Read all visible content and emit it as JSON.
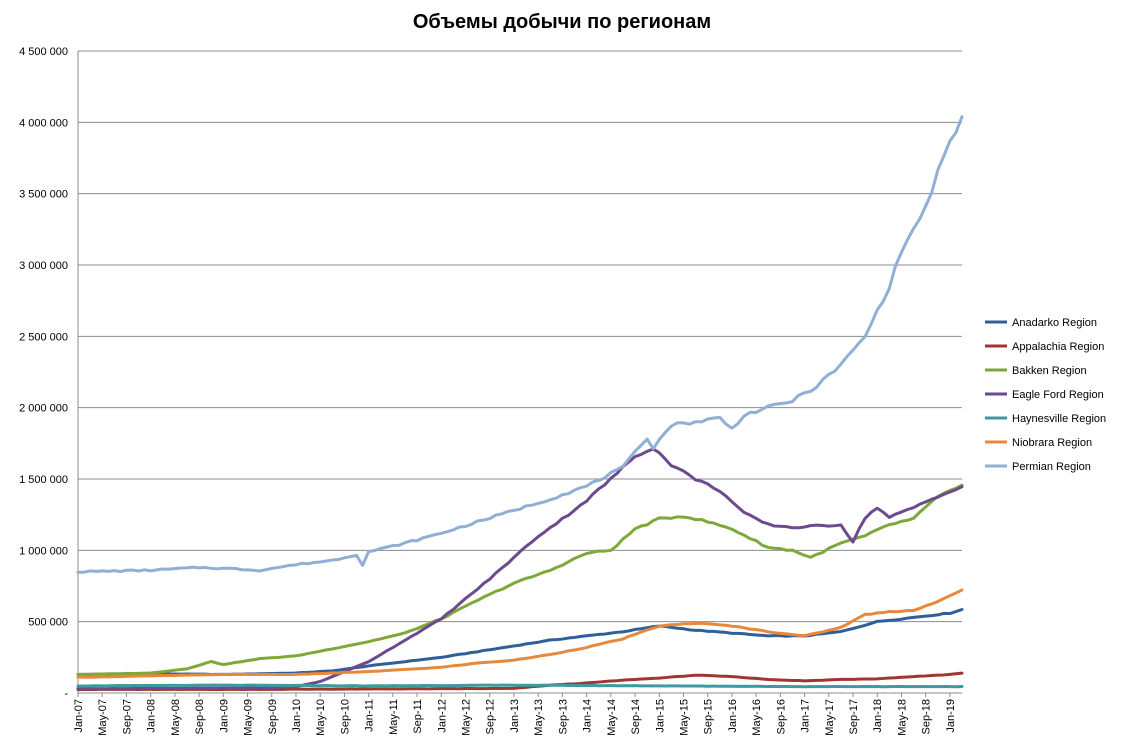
{
  "chart_data": {
    "type": "line",
    "title": "Объемы добычи по регионам",
    "xlabel": "",
    "ylabel": "",
    "ylim": [
      0,
      4500000
    ],
    "yticks": [
      0,
      500000,
      1000000,
      1500000,
      2000000,
      2500000,
      3000000,
      3500000,
      4000000,
      4500000
    ],
    "ytick_labels": [
      "-",
      "500 000",
      "1 000 000",
      "1 500 000",
      "2 000 000",
      "2 500 000",
      "3 000 000",
      "3 500 000",
      "4 000 000",
      "4 500 000"
    ],
    "xticks": [
      "Jan-07",
      "May-07",
      "Sep-07",
      "Jan-08",
      "May-08",
      "Sep-08",
      "Jan-09",
      "May-09",
      "Sep-09",
      "Jan-10",
      "May-10",
      "Sep-10",
      "Jan-11",
      "May-11",
      "Sep-11",
      "Jan-12",
      "May-12",
      "Sep-12",
      "Jan-13",
      "May-13",
      "Sep-13",
      "Jan-14",
      "May-14",
      "Sep-14",
      "Jan-15",
      "May-15",
      "Sep-15",
      "Jan-16",
      "May-16",
      "Sep-16",
      "Jan-17",
      "May-17",
      "Sep-17",
      "Jan-18",
      "May-18",
      "Sep-18",
      "Jan-19"
    ],
    "x_start": "Jan-07",
    "x_end": "Mar-19",
    "grid": true,
    "legend_position": "right",
    "series": [
      {
        "name": "Anadarko Region",
        "color": "#2f5f98",
        "anchors": [
          [
            0,
            130000
          ],
          [
            12,
            135000
          ],
          [
            24,
            130000
          ],
          [
            36,
            140000
          ],
          [
            42,
            155000
          ],
          [
            48,
            190000
          ],
          [
            54,
            220000
          ],
          [
            60,
            250000
          ],
          [
            66,
            290000
          ],
          [
            72,
            330000
          ],
          [
            78,
            370000
          ],
          [
            84,
            400000
          ],
          [
            90,
            430000
          ],
          [
            96,
            470000
          ],
          [
            102,
            440000
          ],
          [
            108,
            420000
          ],
          [
            114,
            400000
          ],
          [
            120,
            400000
          ],
          [
            126,
            430000
          ],
          [
            132,
            500000
          ],
          [
            138,
            530000
          ],
          [
            144,
            560000
          ],
          [
            146,
            585000
          ]
        ]
      },
      {
        "name": "Appalachia Region",
        "color": "#a0362f",
        "anchors": [
          [
            0,
            25000
          ],
          [
            24,
            25000
          ],
          [
            48,
            28000
          ],
          [
            72,
            32000
          ],
          [
            78,
            55000
          ],
          [
            84,
            70000
          ],
          [
            90,
            90000
          ],
          [
            96,
            105000
          ],
          [
            102,
            125000
          ],
          [
            108,
            115000
          ],
          [
            114,
            95000
          ],
          [
            120,
            85000
          ],
          [
            126,
            95000
          ],
          [
            132,
            100000
          ],
          [
            138,
            115000
          ],
          [
            144,
            130000
          ],
          [
            146,
            140000
          ]
        ]
      },
      {
        "name": "Bakken Region",
        "color": "#7ea83a",
        "anchors": [
          [
            0,
            130000
          ],
          [
            12,
            140000
          ],
          [
            18,
            170000
          ],
          [
            22,
            220000
          ],
          [
            24,
            200000
          ],
          [
            30,
            240000
          ],
          [
            36,
            260000
          ],
          [
            42,
            310000
          ],
          [
            48,
            360000
          ],
          [
            54,
            420000
          ],
          [
            60,
            520000
          ],
          [
            66,
            650000
          ],
          [
            72,
            770000
          ],
          [
            78,
            860000
          ],
          [
            84,
            980000
          ],
          [
            88,
            1000000
          ],
          [
            92,
            1150000
          ],
          [
            96,
            1220000
          ],
          [
            100,
            1240000
          ],
          [
            104,
            1200000
          ],
          [
            108,
            1150000
          ],
          [
            114,
            1020000
          ],
          [
            118,
            1000000
          ],
          [
            121,
            950000
          ],
          [
            126,
            1050000
          ],
          [
            130,
            1100000
          ],
          [
            134,
            1180000
          ],
          [
            138,
            1220000
          ],
          [
            142,
            1380000
          ],
          [
            146,
            1450000
          ]
        ]
      },
      {
        "name": "Eagle Ford Region",
        "color": "#6b4a8f",
        "anchors": [
          [
            0,
            30000
          ],
          [
            30,
            35000
          ],
          [
            36,
            45000
          ],
          [
            40,
            80000
          ],
          [
            44,
            150000
          ],
          [
            48,
            220000
          ],
          [
            52,
            320000
          ],
          [
            56,
            420000
          ],
          [
            60,
            520000
          ],
          [
            64,
            660000
          ],
          [
            68,
            800000
          ],
          [
            72,
            950000
          ],
          [
            76,
            1100000
          ],
          [
            80,
            1220000
          ],
          [
            84,
            1350000
          ],
          [
            88,
            1500000
          ],
          [
            92,
            1660000
          ],
          [
            95,
            1720000
          ],
          [
            98,
            1600000
          ],
          [
            102,
            1500000
          ],
          [
            106,
            1420000
          ],
          [
            110,
            1260000
          ],
          [
            114,
            1180000
          ],
          [
            118,
            1160000
          ],
          [
            122,
            1170000
          ],
          [
            126,
            1180000
          ],
          [
            128,
            1060000
          ],
          [
            130,
            1230000
          ],
          [
            132,
            1300000
          ],
          [
            134,
            1230000
          ],
          [
            138,
            1300000
          ],
          [
            142,
            1380000
          ],
          [
            146,
            1440000
          ]
        ]
      },
      {
        "name": "Haynesville Region",
        "color": "#3c9aa0",
        "anchors": [
          [
            0,
            50000
          ],
          [
            24,
            55000
          ],
          [
            48,
            50000
          ],
          [
            72,
            55000
          ],
          [
            96,
            50000
          ],
          [
            120,
            45000
          ],
          [
            146,
            45000
          ]
        ]
      },
      {
        "name": "Niobrara Region",
        "color": "#e8883a",
        "anchors": [
          [
            0,
            110000
          ],
          [
            12,
            120000
          ],
          [
            24,
            130000
          ],
          [
            36,
            130000
          ],
          [
            48,
            150000
          ],
          [
            60,
            180000
          ],
          [
            66,
            210000
          ],
          [
            72,
            230000
          ],
          [
            78,
            270000
          ],
          [
            84,
            320000
          ],
          [
            90,
            380000
          ],
          [
            96,
            470000
          ],
          [
            102,
            490000
          ],
          [
            108,
            470000
          ],
          [
            114,
            430000
          ],
          [
            120,
            400000
          ],
          [
            126,
            460000
          ],
          [
            130,
            550000
          ],
          [
            134,
            570000
          ],
          [
            138,
            580000
          ],
          [
            142,
            640000
          ],
          [
            146,
            720000
          ]
        ]
      },
      {
        "name": "Permian Region",
        "color": "#91afd4",
        "anchors": [
          [
            0,
            850000
          ],
          [
            12,
            860000
          ],
          [
            20,
            880000
          ],
          [
            26,
            870000
          ],
          [
            30,
            860000
          ],
          [
            36,
            900000
          ],
          [
            42,
            930000
          ],
          [
            46,
            970000
          ],
          [
            47,
            900000
          ],
          [
            48,
            990000
          ],
          [
            54,
            1050000
          ],
          [
            60,
            1120000
          ],
          [
            66,
            1200000
          ],
          [
            72,
            1280000
          ],
          [
            78,
            1360000
          ],
          [
            84,
            1450000
          ],
          [
            90,
            1580000
          ],
          [
            94,
            1790000
          ],
          [
            95,
            1720000
          ],
          [
            98,
            1880000
          ],
          [
            102,
            1900000
          ],
          [
            106,
            1930000
          ],
          [
            108,
            1850000
          ],
          [
            110,
            1950000
          ],
          [
            114,
            2000000
          ],
          [
            118,
            2050000
          ],
          [
            122,
            2150000
          ],
          [
            126,
            2300000
          ],
          [
            130,
            2500000
          ],
          [
            134,
            2850000
          ],
          [
            136,
            3100000
          ],
          [
            138,
            3250000
          ],
          [
            140,
            3400000
          ],
          [
            142,
            3650000
          ],
          [
            144,
            3850000
          ],
          [
            146,
            4030000
          ]
        ]
      }
    ]
  }
}
